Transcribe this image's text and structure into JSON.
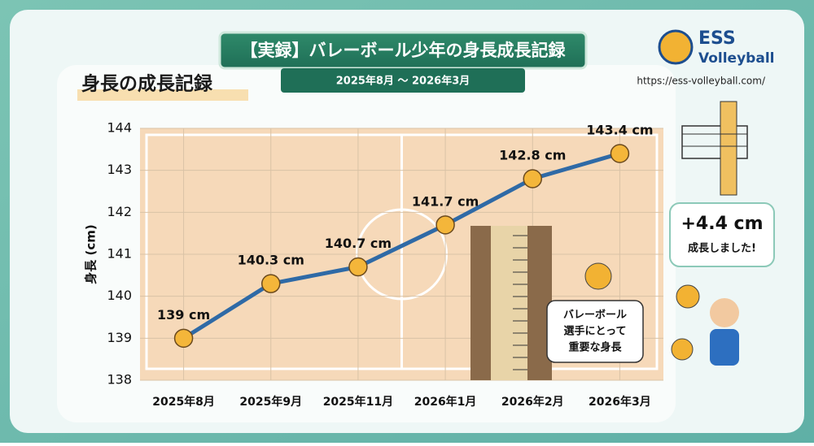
{
  "header": {
    "title": "【実録】バレーボール少年の身長成長記録",
    "subtitle": "2025年8月 〜 2026年3月"
  },
  "logo": {
    "name_top": "ESS",
    "name_bottom": "Volleyball",
    "url": "https://ess-volleyball.com/"
  },
  "chart_data": {
    "type": "line",
    "title": "身長の成長記録",
    "y_label": "身長 (cm)",
    "categories": [
      "2025年8月",
      "2025年9月",
      "2025年11月",
      "2026年1月",
      "2026年2月",
      "2026年3月"
    ],
    "values": [
      139,
      140.3,
      140.7,
      141.7,
      142.8,
      143.4
    ],
    "value_labels": [
      "139 cm",
      "140.3 cm",
      "140.7 cm",
      "141.7 cm",
      "142.8 cm",
      "143.4 cm"
    ],
    "color": "#2f6aa6",
    "ylim": [
      138,
      144
    ],
    "yticks": [
      138,
      139,
      140,
      141,
      142,
      143,
      144
    ],
    "grid": true
  },
  "callout": {
    "value": "+4.4 cm",
    "text": "成長しました!"
  },
  "photo_note": {
    "lines": [
      "バレーボール",
      "選手にとって",
      "重要な身長"
    ]
  }
}
